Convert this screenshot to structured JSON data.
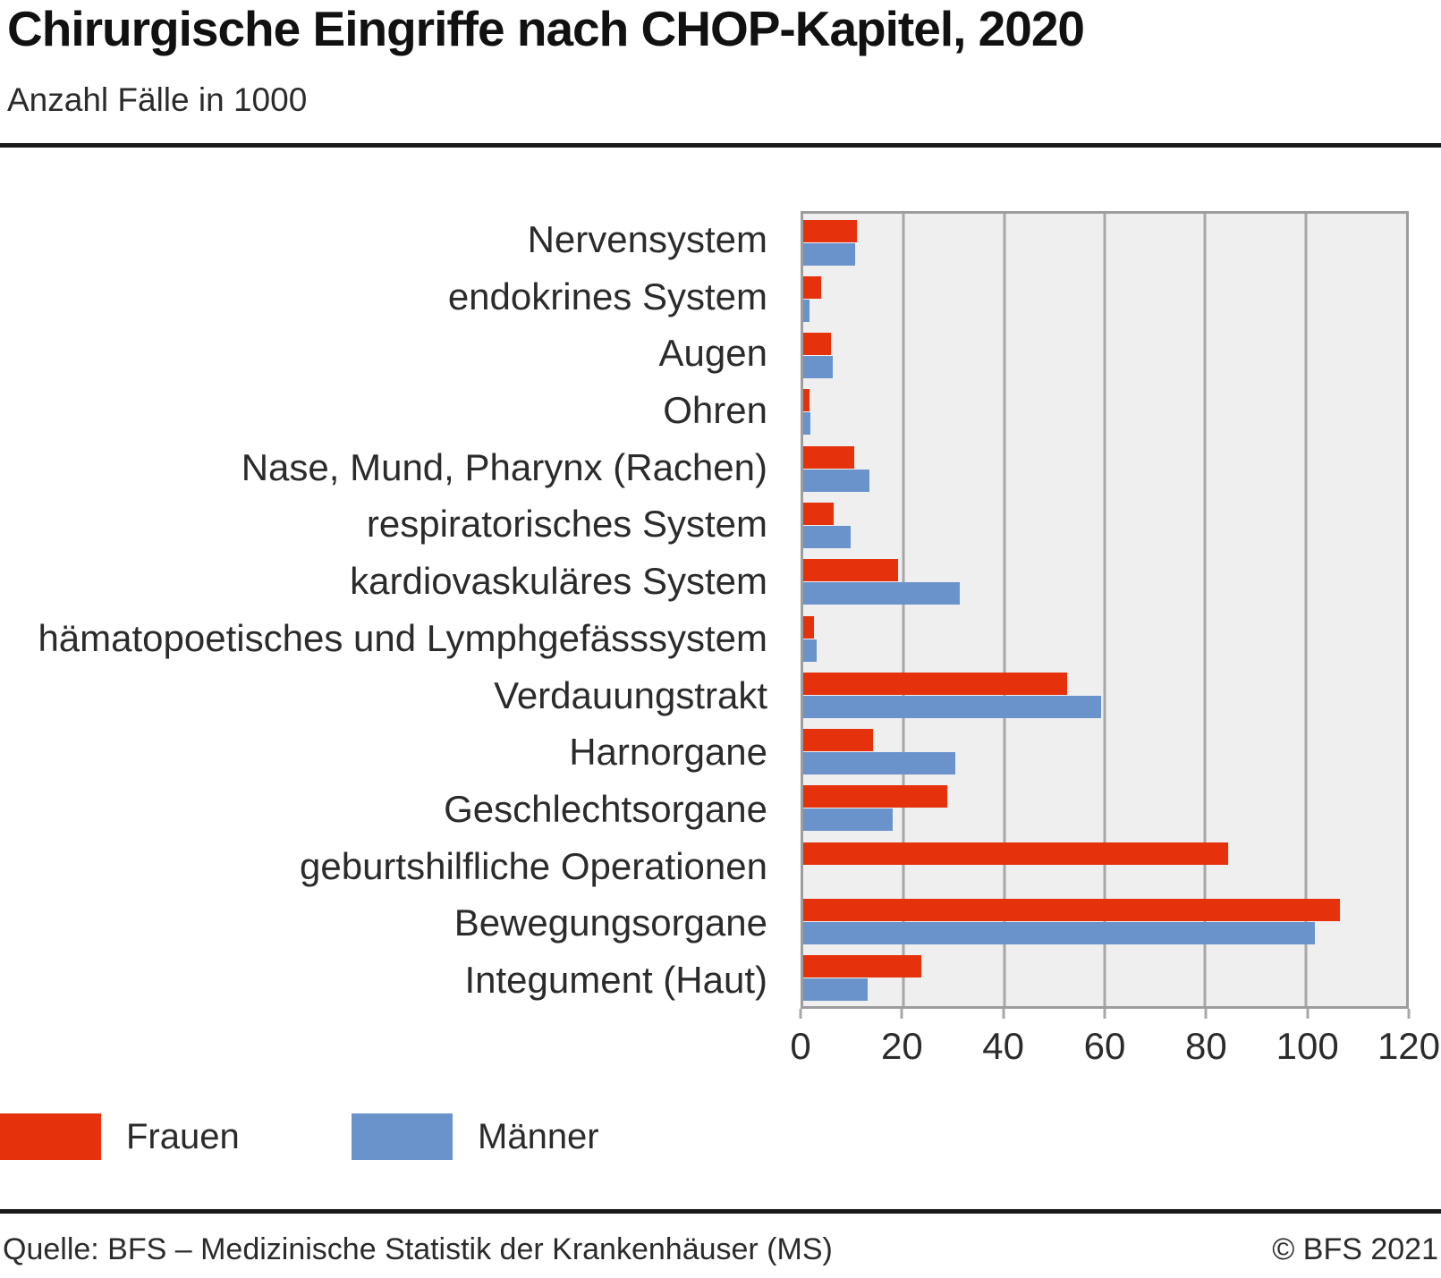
{
  "header": {
    "title": "Chirurgische Eingriffe nach CHOP-Kapitel, 2020",
    "subtitle": "Anzahl Fälle in 1000"
  },
  "chart_data": {
    "type": "bar",
    "orientation": "horizontal",
    "title": "Chirurgische Eingriffe nach CHOP-Kapitel, 2020",
    "unit_label": "Anzahl Fälle in 1000",
    "categories": [
      "Nervensystem",
      "endokrines System",
      "Augen",
      "Ohren",
      "Nase, Mund, Pharynx (Rachen)",
      "respiratorisches System",
      "kardiovaskuläres System",
      "hämatopoetisches und Lymphgefässsystem",
      "Verdauungstrakt",
      "Harnorgane",
      "Geschlechtsorgane",
      "geburtshilfliche Operationen",
      "Bewegungsorgane",
      "Integument (Haut)"
    ],
    "series": [
      {
        "name": "Frauen",
        "color": "#e5320d",
        "values": [
          10.6,
          3.5,
          5.5,
          1.3,
          10.2,
          6.0,
          18.9,
          2.1,
          52.6,
          13.9,
          28.6,
          84.5,
          106.9,
          23.5
        ]
      },
      {
        "name": "Männer",
        "color": "#6b93cb",
        "values": [
          10.3,
          1.2,
          5.9,
          1.5,
          13.2,
          9.4,
          31.2,
          2.6,
          59.3,
          30.3,
          17.8,
          0,
          101.8,
          12.9
        ]
      }
    ],
    "xlim": [
      0,
      120
    ],
    "x_ticks": [
      0,
      20,
      40,
      60,
      80,
      100,
      120
    ],
    "grid": "vertical",
    "plot_background": "#efefef",
    "grid_color": "#a7a7a7",
    "legend_position": "bottom-left"
  },
  "legend": {
    "items": [
      {
        "label": "Frauen",
        "color": "#e5320d"
      },
      {
        "label": "Männer",
        "color": "#6b93cb"
      }
    ]
  },
  "footer": {
    "source": "Quelle: BFS – Medizinische Statistik der Krankenhäuser (MS)",
    "copyright": "© BFS 2021"
  }
}
